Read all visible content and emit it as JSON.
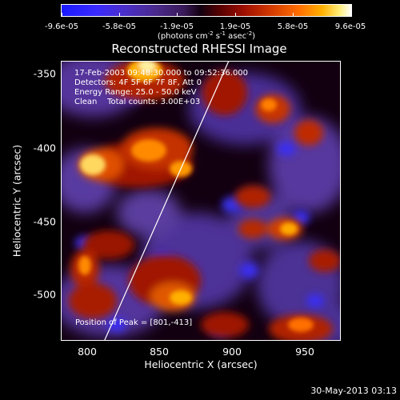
{
  "colorbar": {
    "tick_labels": [
      "-9.6e-05",
      "-5.8e-05",
      "-1.9e-05",
      "1.9e-05",
      "5.8e-05",
      "9.6e-05"
    ],
    "units": "(photons cm",
    "units_exp1": "-2",
    "units_mid": " s",
    "units_exp2": "-1",
    "units_mid2": " asec",
    "units_exp3": "-2",
    "units_end": ")"
  },
  "title": "Reconstructed RHESSI Image",
  "info": {
    "line1": "17-Feb-2003 09:48:30.000 to 09:52:36.000",
    "line2": "Detectors: 4F 5F 6F 7F 8F, Att 0",
    "line3": "Energy Range: 25.0 - 50.0 keV",
    "line4": "Clean    Total counts: 3.00E+03",
    "peak": "Position of Peak = [801,-413]"
  },
  "axes": {
    "xlabel": "Heliocentric X (arcsec)",
    "ylabel": "Heliocentric Y (arcsec)",
    "xticks": [
      "800",
      "850",
      "900",
      "950"
    ],
    "yticks": [
      "-350",
      "-400",
      "-450",
      "-500"
    ],
    "xlim": [
      782,
      973
    ],
    "ylim": [
      -532,
      -341
    ]
  },
  "footer": {
    "date": "30-May-2013 03:13"
  }
}
